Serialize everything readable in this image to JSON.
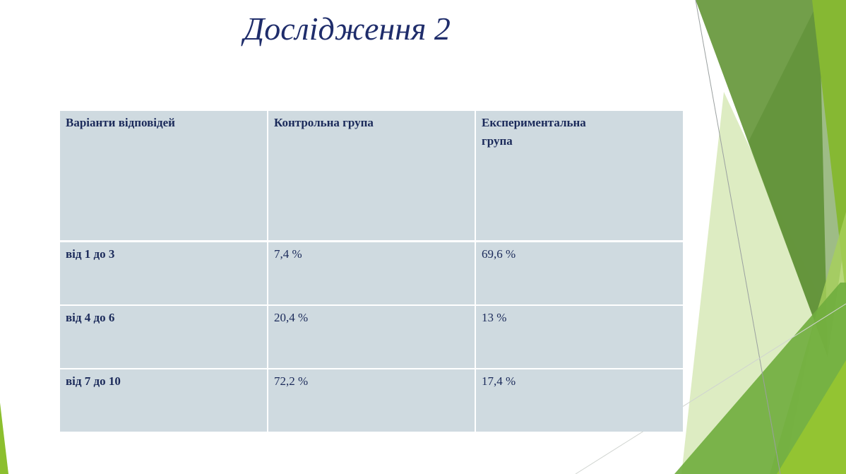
{
  "title": "Дослідження 2",
  "table": {
    "headers": [
      "Варіанти відповідей",
      "Контрольна група",
      "Експериментальна група"
    ],
    "rows": [
      [
        "від 1 до 3",
        "7,4 %",
        "69,6 %"
      ],
      [
        "від 4 до 6",
        "20,4 %",
        "13 %"
      ],
      [
        "від 7 до 10",
        "72,2 %",
        "17,4 %"
      ]
    ]
  },
  "colors": {
    "title": "#1f2d6b",
    "cell_bg": "#cfdae0",
    "accent_green": "#6a9a40",
    "lime": "#8cbf2e"
  }
}
